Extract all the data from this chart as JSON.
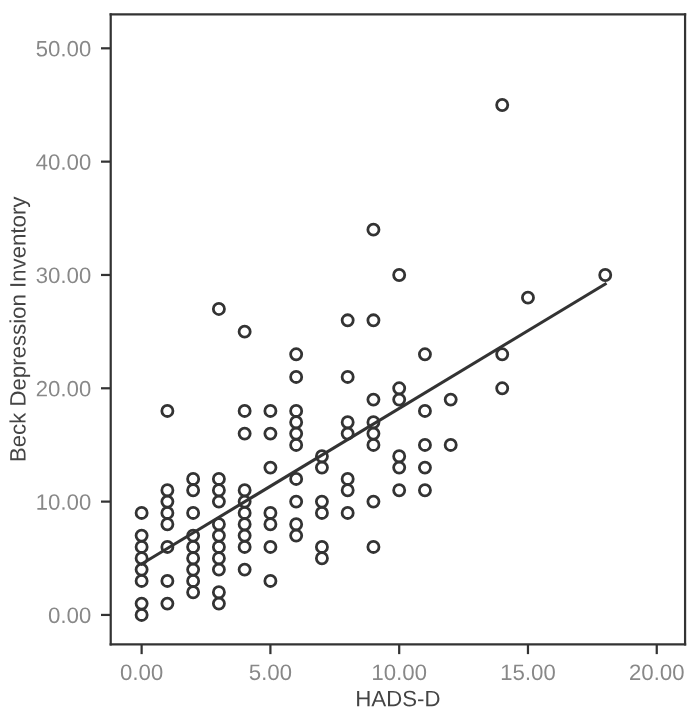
{
  "chart_data": {
    "type": "scatter",
    "xlabel": "HADS-D",
    "ylabel": "Beck Depression Inventory",
    "xlim": [
      -1.2,
      21.1
    ],
    "ylim": [
      -2.6,
      53
    ],
    "xticks": [
      {
        "value": 0,
        "label": "0.00"
      },
      {
        "value": 5,
        "label": "5.00"
      },
      {
        "value": 10,
        "label": "10.00"
      },
      {
        "value": 15,
        "label": "15.00"
      },
      {
        "value": 20,
        "label": "20.00"
      }
    ],
    "yticks": [
      {
        "value": 0,
        "label": "0.00"
      },
      {
        "value": 10,
        "label": "10.00"
      },
      {
        "value": 20,
        "label": "20.00"
      },
      {
        "value": 30,
        "label": "30.00"
      },
      {
        "value": 40,
        "label": "40.00"
      },
      {
        "value": 50,
        "label": "50.00"
      }
    ],
    "grid": false,
    "legend": false,
    "series": [
      {
        "marker": "circle",
        "color": "#333333",
        "x": [
          0,
          0,
          0,
          0,
          0,
          0,
          0,
          0,
          1,
          1,
          1,
          1,
          1,
          1,
          1,
          1,
          2,
          2,
          2,
          2,
          2,
          2,
          2,
          2,
          2,
          3,
          3,
          3,
          3,
          3,
          3,
          3,
          3,
          3,
          3,
          3,
          4,
          4,
          4,
          4,
          4,
          4,
          4,
          4,
          4,
          4,
          5,
          5,
          5,
          5,
          5,
          5,
          5,
          6,
          6,
          6,
          6,
          6,
          6,
          6,
          6,
          6,
          6,
          7,
          7,
          7,
          7,
          7,
          7,
          8,
          8,
          8,
          8,
          8,
          8,
          8,
          9,
          9,
          9,
          9,
          9,
          9,
          9,
          9,
          10,
          10,
          10,
          10,
          10,
          10,
          11,
          11,
          11,
          11,
          11,
          12,
          12,
          14,
          14,
          14,
          15,
          18
        ],
        "values": [
          9,
          7,
          6,
          5,
          4,
          3,
          1,
          0,
          18,
          11,
          10,
          9,
          8,
          6,
          3,
          1,
          12,
          11,
          9,
          7,
          6,
          5,
          4,
          3,
          2,
          27,
          12,
          11,
          10,
          8,
          7,
          6,
          5,
          4,
          2,
          1,
          25,
          18,
          16,
          11,
          10,
          9,
          8,
          7,
          6,
          4,
          18,
          16,
          13,
          9,
          8,
          6,
          3,
          23,
          21,
          18,
          17,
          16,
          15,
          12,
          10,
          8,
          7,
          14,
          13,
          10,
          9,
          6,
          5,
          26,
          21,
          17,
          16,
          12,
          11,
          9,
          34,
          26,
          19,
          17,
          16,
          15,
          10,
          6,
          30,
          20,
          19,
          14,
          13,
          11,
          23,
          18,
          15,
          13,
          11,
          19,
          15,
          45,
          23,
          20,
          28,
          30
        ]
      },
      {
        "type": "line",
        "marker": "none",
        "color": "#333333",
        "x": [
          0,
          18
        ],
        "values": [
          4.5,
          29.2
        ]
      }
    ]
  }
}
